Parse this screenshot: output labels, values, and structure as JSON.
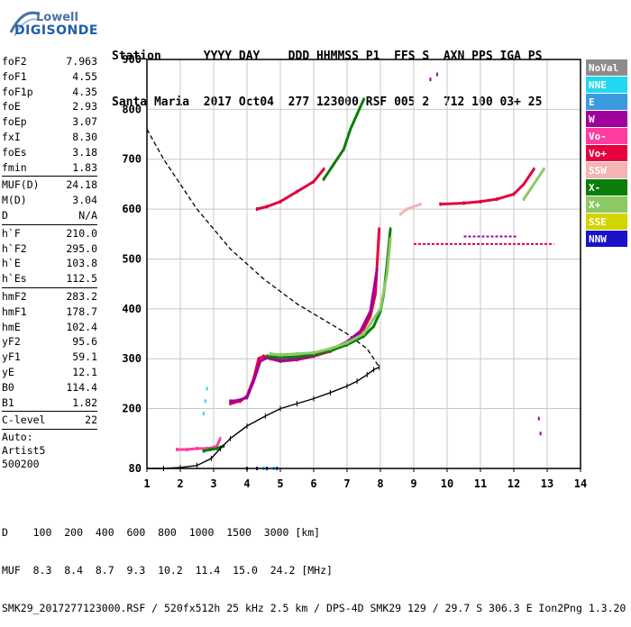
{
  "logo": {
    "line1": "Lowell",
    "line2": "DIGISONDE"
  },
  "header": {
    "line1": "Station      YYYY DAY    DDD HHMMSS P1  FFS S  AXN PPS IGA PS",
    "line2": "Santa Maria  2017 Oct04  277 123000 RSF 005 2  712 100 03+ 25"
  },
  "params_block1": [
    {
      "k": "foF2",
      "v": "7.963"
    },
    {
      "k": "foF1",
      "v": "4.55"
    },
    {
      "k": "foF1p",
      "v": "4.35"
    },
    {
      "k": "foE",
      "v": "2.93"
    },
    {
      "k": "foEp",
      "v": "3.07"
    },
    {
      "k": "fxI",
      "v": "8.30"
    },
    {
      "k": "foEs",
      "v": "3.18"
    },
    {
      "k": "fmin",
      "v": "1.83"
    }
  ],
  "params_block2": [
    {
      "k": "MUF(D)",
      "v": "24.18"
    },
    {
      "k": "M(D)",
      "v": "3.04"
    },
    {
      "k": "D",
      "v": "N/A"
    }
  ],
  "params_block3": [
    {
      "k": "h`F",
      "v": "210.0"
    },
    {
      "k": "h`F2",
      "v": "295.0"
    },
    {
      "k": "h`E",
      "v": "103.8"
    },
    {
      "k": "h`Es",
      "v": "112.5"
    }
  ],
  "params_block4": [
    {
      "k": "hmF2",
      "v": "283.2"
    },
    {
      "k": "hmF1",
      "v": "178.7"
    },
    {
      "k": "hmE",
      "v": "102.4"
    },
    {
      "k": "yF2",
      "v": "95.6"
    },
    {
      "k": "yF1",
      "v": "59.1"
    },
    {
      "k": "yE",
      "v": "12.1"
    },
    {
      "k": "B0",
      "v": "114.4"
    },
    {
      "k": "B1",
      "v": "1.82"
    }
  ],
  "params_block5": [
    {
      "k": "C-level",
      "v": "22"
    }
  ],
  "autoscaling": {
    "line1": "Auto:",
    "line2": "Artist5",
    "line3": "500200"
  },
  "legend": [
    {
      "label": "NoVal",
      "color": "#8c8c8c",
      "text": "#ffffff"
    },
    {
      "label": "NNE",
      "color": "#22d8f0",
      "text": "#ffffff"
    },
    {
      "label": "E",
      "color": "#3c9be0",
      "text": "#ffffff"
    },
    {
      "label": "W",
      "color": "#a0009c",
      "text": "#ffffff"
    },
    {
      "label": "Vo-",
      "color": "#ff3ca0",
      "text": "#ffffff"
    },
    {
      "label": "Vo+",
      "color": "#e6003c",
      "text": "#ffffff"
    },
    {
      "label": "SSW",
      "color": "#f4b4b4",
      "text": "#ffffff"
    },
    {
      "label": "X-",
      "color": "#0a7d0a",
      "text": "#ffffff"
    },
    {
      "label": "X+",
      "color": "#8cc864",
      "text": "#ffffff"
    },
    {
      "label": "SSE",
      "color": "#d4d400",
      "text": "#ffffff"
    },
    {
      "label": "NNW",
      "color": "#1a12c8",
      "text": "#ffffff"
    }
  ],
  "footer": {
    "line1": "D    100  200  400  600  800  1000  1500  3000 [km]",
    "line2": "MUF  8.3  8.4  8.7  9.3  10.2  11.4  15.0  24.2 [MHz]",
    "line3": "SMK29_2017277123000.RSF / 520fx512h 25 kHz 2.5 km / DPS-4D SMK29 129 / 29.7 S 306.3 E Ion2Png 1.3.20"
  },
  "chart_data": {
    "type": "scatter",
    "xlim": [
      1,
      14
    ],
    "ylim": [
      80,
      900
    ],
    "x_ticks": [
      "1",
      "2",
      "3",
      "4",
      "5",
      "6",
      "7",
      "8",
      "9",
      "10",
      "11",
      "12",
      "13",
      "14"
    ],
    "y_ticks": [
      "80",
      "200",
      "300",
      "400",
      "500",
      "600",
      "700",
      "800",
      "900"
    ],
    "y_tick_values": [
      80,
      200,
      300,
      400,
      500,
      600,
      700,
      800,
      900
    ],
    "grid": true,
    "profile_curve": {
      "name": "true-height profile",
      "color": "#000000",
      "x": [
        1.0,
        1.5,
        2.0,
        2.5,
        2.93,
        3.2,
        3.5,
        4.0,
        4.55,
        5.0,
        5.5,
        6.0,
        6.5,
        7.0,
        7.3,
        7.6,
        7.8,
        7.963
      ],
      "y": [
        80,
        80,
        82,
        86,
        100,
        120,
        140,
        165,
        185,
        200,
        210,
        220,
        232,
        245,
        255,
        268,
        278,
        283
      ]
    },
    "dashed_curve": {
      "name": "model profile",
      "color": "#000000",
      "x": [
        1.0,
        1.5,
        2.0,
        2.5,
        3.0,
        3.5,
        4.0,
        4.5,
        5.0,
        5.5,
        6.0,
        6.5,
        7.0,
        7.3,
        7.6,
        7.8,
        7.963
      ],
      "y": [
        760,
        700,
        650,
        600,
        560,
        520,
        490,
        460,
        435,
        410,
        390,
        370,
        350,
        335,
        320,
        300,
        283
      ]
    },
    "series": [
      {
        "name": "Vo+",
        "color": "#e6003c",
        "x": [
          3.5,
          3.6,
          3.8,
          4.0,
          4.2,
          4.35,
          4.5,
          4.7,
          5.0,
          5.5,
          6.0,
          6.5,
          7.0,
          7.3,
          7.5,
          7.7,
          7.85,
          7.963
        ],
        "y": [
          210,
          212,
          215,
          225,
          260,
          300,
          305,
          300,
          295,
          298,
          305,
          315,
          330,
          345,
          360,
          385,
          430,
          560
        ]
      },
      {
        "name": "W",
        "color": "#a0009c",
        "x": [
          3.5,
          3.7,
          4.0,
          4.2,
          4.4,
          4.6,
          5.0,
          5.5,
          6.0,
          6.5,
          7.0,
          7.4,
          7.7,
          7.9
        ],
        "y": [
          215,
          216,
          222,
          255,
          295,
          302,
          296,
          299,
          306,
          318,
          334,
          355,
          395,
          480
        ]
      },
      {
        "name": "X-",
        "color": "#0a7d0a",
        "x": [
          4.6,
          5.0,
          5.5,
          6.0,
          6.5,
          7.0,
          7.5,
          7.8,
          8.0,
          8.1,
          8.2,
          8.3
        ],
        "y": [
          305,
          302,
          304,
          308,
          316,
          328,
          345,
          365,
          395,
          430,
          490,
          560
        ]
      },
      {
        "name": "X+",
        "color": "#8cc864",
        "x": [
          4.7,
          5.0,
          5.5,
          6.0,
          6.5,
          7.0,
          7.5,
          8.0,
          8.2,
          8.3
        ],
        "y": [
          310,
          308,
          310,
          312,
          320,
          332,
          350,
          400,
          470,
          540
        ]
      },
      {
        "name": "Vo- (E/Es)",
        "color": "#ff3ca0",
        "x": [
          1.9,
          2.2,
          2.5,
          2.8,
          3.0,
          3.1,
          3.2
        ],
        "y": [
          118,
          118,
          120,
          120,
          122,
          125,
          140
        ]
      },
      {
        "name": "E-layer X",
        "color": "#0a7d0a",
        "x": [
          2.7,
          2.9,
          3.1,
          3.3
        ],
        "y": [
          115,
          118,
          120,
          125
        ]
      },
      {
        "name": "F multi-hop Vo",
        "color": "#e6003c",
        "x": [
          4.3,
          4.6,
          5.0,
          5.5,
          6.0,
          6.3
        ],
        "y": [
          600,
          605,
          615,
          635,
          655,
          680
        ]
      },
      {
        "name": "F multi-hop X",
        "color": "#0a7d0a",
        "x": [
          6.3,
          6.6,
          6.9,
          7.1,
          7.3,
          7.5
        ],
        "y": [
          660,
          690,
          720,
          760,
          790,
          820
        ]
      },
      {
        "name": "spread Vo+",
        "color": "#e6003c",
        "x": [
          9.8,
          10.5,
          11.0,
          11.5,
          12.0,
          12.3,
          12.6
        ],
        "y": [
          610,
          612,
          615,
          620,
          630,
          650,
          680
        ]
      },
      {
        "name": "spread X+",
        "color": "#8cc864",
        "x": [
          12.3,
          12.5,
          12.7,
          12.9
        ],
        "y": [
          620,
          640,
          660,
          680
        ]
      },
      {
        "name": "SSW",
        "color": "#f4b4b4",
        "x": [
          8.6,
          8.8,
          9.0,
          9.2
        ],
        "y": [
          590,
          600,
          605,
          610
        ]
      },
      {
        "name": "NNE",
        "color": "#22d8f0",
        "x": [
          2.7,
          2.75,
          2.8,
          4.5,
          4.8
        ],
        "y": [
          190,
          215,
          240,
          80,
          80
        ]
      },
      {
        "name": "NNW",
        "color": "#1a12c8",
        "x": [
          4.0,
          4.3,
          4.6,
          4.9
        ],
        "y": [
          80,
          80,
          80,
          80
        ]
      },
      {
        "name": "W (misc)",
        "color": "#a0009c",
        "x": [
          9.5,
          9.7,
          12.75,
          12.8
        ],
        "y": [
          860,
          870,
          180,
          150
        ]
      }
    ],
    "hlines": [
      {
        "x1": 9.0,
        "x2": 13.2,
        "y": 530,
        "color": "#e6003c",
        "name": "Vo+ band 530"
      },
      {
        "x1": 10.5,
        "x2": 12.1,
        "y": 545,
        "color": "#a0009c",
        "name": "W band 545"
      }
    ]
  }
}
